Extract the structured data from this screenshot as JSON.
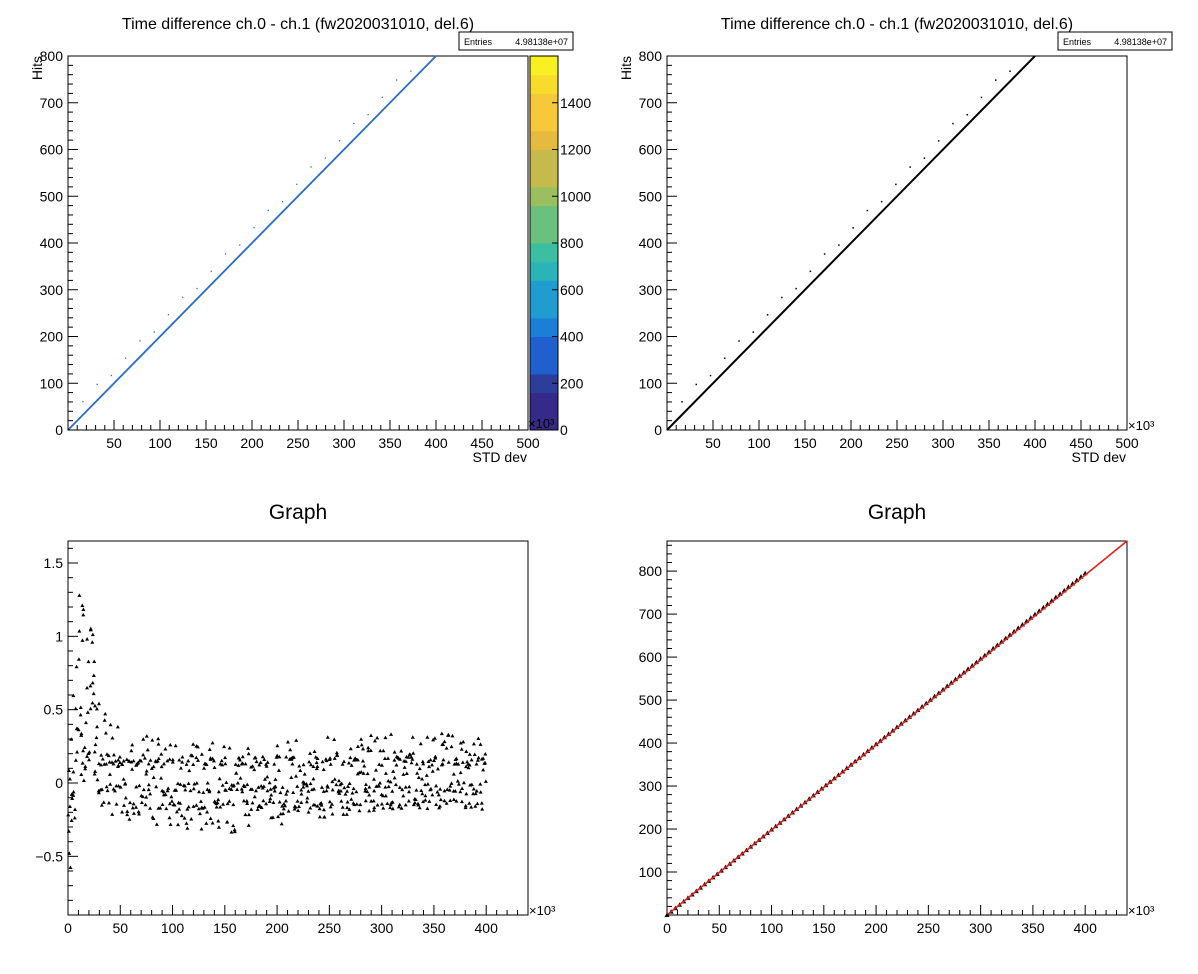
{
  "colors": {
    "palette_low": "#2c3e9a",
    "palette_mid": "#2aa6a6",
    "palette_high": "#f7f020",
    "line_blue": "#2a6cc9",
    "fit_red": "#e0201a",
    "marker_black": "#000000"
  },
  "chart_data": [
    {
      "type": "heatmap",
      "title": "Time difference ch.0 - ch.1 (fw2020031010, del.6)",
      "xlabel": "STD dev",
      "ylabel": "Hits",
      "xlim": [
        0,
        500
      ],
      "ylim": [
        0,
        800
      ],
      "x_ticks": [
        "50",
        "100",
        "150",
        "200",
        "250",
        "300",
        "350",
        "400",
        "450",
        "500"
      ],
      "y_ticks": [
        "0",
        "100",
        "200",
        "300",
        "400",
        "500",
        "600",
        "700",
        "800"
      ],
      "stats": {
        "label": "Entries",
        "value": "4.98138e+07"
      },
      "line": {
        "from": [
          0,
          0
        ],
        "to": [
          400,
          800
        ]
      },
      "colorbar": {
        "ticks": [
          "0",
          "200",
          "400",
          "600",
          "800",
          "1000",
          "1200",
          "1400"
        ],
        "multiplier": "×10³"
      }
    },
    {
      "type": "heatmap",
      "title": "Time difference ch.0 - ch.1 (fw2020031010, del.6)",
      "xlabel": "STD dev",
      "ylabel": "Hits",
      "xlim": [
        0,
        500
      ],
      "ylim": [
        0,
        800
      ],
      "x_ticks": [
        "50",
        "100",
        "150",
        "200",
        "250",
        "300",
        "350",
        "400",
        "450",
        "500"
      ],
      "y_ticks": [
        "0",
        "100",
        "200",
        "300",
        "400",
        "500",
        "600",
        "700",
        "800"
      ],
      "x_multiplier": "×10³",
      "stats": {
        "label": "Entries",
        "value": "4.98138e+07"
      },
      "line": {
        "from": [
          0,
          0
        ],
        "to": [
          400,
          800
        ]
      }
    },
    {
      "type": "scatter",
      "title": "Graph",
      "xlim": [
        0,
        440
      ],
      "ylim": [
        -0.9,
        1.65
      ],
      "x_ticks": [
        "0",
        "50",
        "100",
        "150",
        "200",
        "250",
        "300",
        "350",
        "400"
      ],
      "y_ticks": [
        "−0.5",
        "0",
        "0.5",
        "1",
        "1.5"
      ],
      "x_multiplier": "×10³",
      "envelope": [
        {
          "x": 0,
          "min": -0.75,
          "max": 0.2
        },
        {
          "x": 5,
          "min": -0.45,
          "max": 0.7
        },
        {
          "x": 10,
          "min": -0.1,
          "max": 1.45
        },
        {
          "x": 15,
          "min": 0.0,
          "max": 1.35
        },
        {
          "x": 20,
          "min": 0.15,
          "max": 1.2
        },
        {
          "x": 30,
          "min": -0.25,
          "max": 0.55
        },
        {
          "x": 50,
          "min": -0.25,
          "max": 0.35
        },
        {
          "x": 100,
          "min": -0.3,
          "max": 0.3
        },
        {
          "x": 150,
          "min": -0.35,
          "max": 0.28
        },
        {
          "x": 200,
          "min": -0.3,
          "max": 0.3
        },
        {
          "x": 250,
          "min": -0.25,
          "max": 0.32
        },
        {
          "x": 300,
          "min": -0.2,
          "max": 0.33
        },
        {
          "x": 350,
          "min": -0.15,
          "max": 0.34
        },
        {
          "x": 400,
          "min": -0.15,
          "max": 0.35
        }
      ],
      "bands": [
        0.15,
        -0.03,
        -0.15
      ]
    },
    {
      "type": "scatter",
      "title": "Graph",
      "xlim": [
        0,
        440
      ],
      "ylim": [
        0,
        870
      ],
      "x_ticks": [
        "0",
        "50",
        "100",
        "150",
        "200",
        "250",
        "300",
        "350",
        "400"
      ],
      "y_ticks": [
        "100",
        "200",
        "300",
        "400",
        "500",
        "600",
        "700",
        "800"
      ],
      "x_multiplier": "×10³",
      "points": {
        "from": [
          0,
          0
        ],
        "to": [
          400,
          795
        ]
      },
      "fit": {
        "from": [
          0,
          0
        ],
        "to": [
          440,
          870
        ],
        "color": "red"
      }
    }
  ]
}
